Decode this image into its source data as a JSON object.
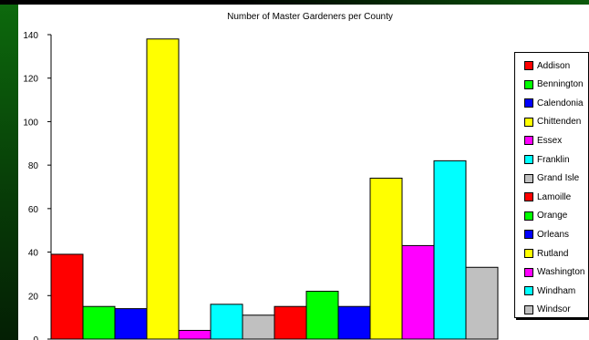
{
  "chart_data": {
    "type": "bar",
    "title": "Number of Master Gardeners per County",
    "xlabel": "",
    "ylabel": "",
    "ylim": [
      0,
      140
    ],
    "yticks": [
      0,
      20,
      40,
      60,
      80,
      100,
      120,
      140
    ],
    "grid": false,
    "legend_position": "right",
    "series": [
      {
        "name": "Addison",
        "value": 39,
        "color": "#ff0000"
      },
      {
        "name": "Bennington",
        "value": 15,
        "color": "#00ff00"
      },
      {
        "name": "Calendonia",
        "value": 14,
        "color": "#0000ff"
      },
      {
        "name": "Chittenden",
        "value": 138,
        "color": "#ffff00"
      },
      {
        "name": "Essex",
        "value": 4,
        "color": "#ff00ff"
      },
      {
        "name": "Franklin",
        "value": 16,
        "color": "#00ffff"
      },
      {
        "name": "Grand Isle",
        "value": 11,
        "color": "#c0c0c0"
      },
      {
        "name": "Lamoille",
        "value": 15,
        "color": "#ff0000"
      },
      {
        "name": "Orange",
        "value": 22,
        "color": "#00ff00"
      },
      {
        "name": "Orleans",
        "value": 15,
        "color": "#0000ff"
      },
      {
        "name": "Rutland",
        "value": 74,
        "color": "#ffff00"
      },
      {
        "name": "Washington",
        "value": 43,
        "color": "#ff00ff"
      },
      {
        "name": "Windham",
        "value": 82,
        "color": "#00ffff"
      },
      {
        "name": "Windsor",
        "value": 33,
        "color": "#c0c0c0"
      }
    ]
  }
}
